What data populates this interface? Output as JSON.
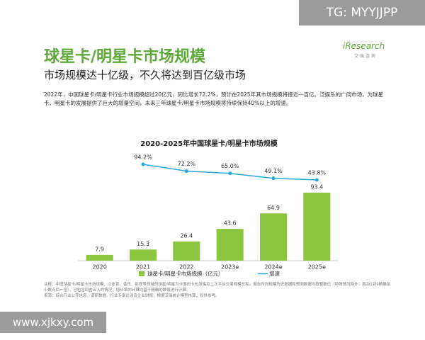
{
  "watermark_top": "TG: MYYJJPP",
  "logo": {
    "name": "iResearch",
    "sub": "艾 瑞 咨 询"
  },
  "header": {
    "title": "球星卡/明星卡市场规模",
    "subtitle": "市场规模达十亿级，不久将达到百亿级市场"
  },
  "summary": "2022年，中国球星卡/明星卡行业市场规模超过20亿元，同比增长72.2%，预计在2025年其市场规模将接近一百亿。泛娱乐的广阔市场，为球星卡、明星卡的发展提供了巨大的增量空间，未来三年球星卡/明星卡市场规模将持续保持40%以上的增速。",
  "chart_data": {
    "type": "combo",
    "title": "2020-2025年中国球星卡/明星卡市场规模",
    "categories": [
      "2020",
      "2021",
      "2022",
      "2023e",
      "2024e",
      "2025e"
    ],
    "series": [
      {
        "name": "球星卡/明星卡市场规模（亿元）",
        "type": "bar",
        "color": "#8cc63e",
        "values": [
          7.9,
          15.3,
          26.4,
          43.6,
          64.9,
          93.4
        ]
      },
      {
        "name": "增速",
        "type": "line",
        "axis": "y2",
        "color": "#2aa6dc",
        "values": [
          null,
          94.2,
          72.2,
          65.0,
          49.1,
          43.8
        ],
        "value_labels": [
          null,
          "94.2%",
          "72.2%",
          "65.0%",
          "49.1%",
          "43.8%"
        ]
      }
    ]
  },
  "notes": [
    "注释：中国球星卡/明星卡市场规模，以体育、音乐、影视等领域的球星/明星为卡面的卡包发售及二次平台交易规模总和。报告所列规模历史数据和预测数据均取整数位（特殊情况除外：若为1到9精确至小数点后一位），已包含四舍五入的情况；增长率的计算均基于精确的数值进行计算。",
    "来源：综合行业公开信息、调研数据、行业专家访谈及企业财报，根据艾瑞统计模型核算，仅供参考。"
  ],
  "watermark_bottom": "www.xjkxy.com"
}
